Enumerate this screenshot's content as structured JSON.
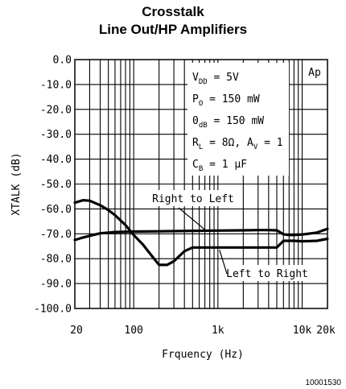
{
  "chart_data": {
    "type": "line",
    "title": [
      "Crosstalk",
      "Line Out/HP Amplifiers"
    ],
    "xlabel": "Frquency (Hz)",
    "ylabel": "XTALK (dB)",
    "x_scale": "log",
    "xlim": [
      20,
      20000
    ],
    "ylim": [
      -100,
      0
    ],
    "xticks": [
      20,
      100,
      1000,
      10000,
      20000
    ],
    "xtick_labels": [
      "20",
      "100",
      "1k",
      "10k",
      "20k"
    ],
    "yticks": [
      0,
      -10,
      -20,
      -30,
      -40,
      -50,
      -60,
      -70,
      -80,
      -90,
      -100
    ],
    "ytick_labels": [
      "0.0",
      "-10.0",
      "-20.0",
      "-30.0",
      "-40.0",
      "-50.0",
      "-60.0",
      "-70.0",
      "-80.0",
      "-90.0",
      "-100.0"
    ],
    "grid": true,
    "logo": "Ap",
    "conditions": [
      {
        "main": "V",
        "sub": "DD",
        "rest": " = 5V"
      },
      {
        "main": "P",
        "sub": "O",
        "rest": " = 150 mW"
      },
      {
        "main": "0",
        "sub": "dB",
        "rest": " = 150 mW"
      },
      {
        "main": "R",
        "sub": "L",
        "rest": " = 8Ω, A",
        "sub2": "V",
        "rest2": " = 1"
      },
      {
        "main": "C",
        "sub": "B",
        "rest": " = 1 µF"
      }
    ],
    "series": [
      {
        "name": "Right to Left",
        "x": [
          20,
          25,
          30,
          40,
          50,
          60,
          80,
          100,
          130,
          170,
          200,
          250,
          300,
          400,
          500,
          700,
          1000,
          2000,
          3000,
          4000,
          5000,
          6000,
          8000,
          10000,
          15000,
          20000
        ],
        "y": [
          -57.5,
          -56.5,
          -56.7,
          -58.5,
          -60.5,
          -62.5,
          -66.5,
          -70.5,
          -74.5,
          -79.5,
          -82.5,
          -82.5,
          -81,
          -77,
          -75.5,
          -75.5,
          -75.5,
          -75.5,
          -75.5,
          -75.5,
          -75.5,
          -72.8,
          -72.8,
          -73,
          -72.8,
          -72
        ]
      },
      {
        "name": "Left to Right",
        "x": [
          20,
          25,
          30,
          40,
          50,
          60,
          80,
          100,
          200,
          500,
          1000,
          2000,
          3000,
          4000,
          5000,
          6000,
          7000,
          8000,
          10000,
          15000,
          20000
        ],
        "y": [
          -72.5,
          -71.5,
          -70.8,
          -69.8,
          -69.5,
          -69.3,
          -69.2,
          -69.1,
          -69,
          -68.8,
          -68.7,
          -68.6,
          -68.5,
          -68.5,
          -68.6,
          -70.2,
          -70.5,
          -70.5,
          -70.3,
          -69.5,
          -68
        ]
      }
    ],
    "annotations": [
      {
        "text": "Right to Left"
      },
      {
        "text": "Left to Right"
      }
    ],
    "figure_id": "10001530"
  }
}
